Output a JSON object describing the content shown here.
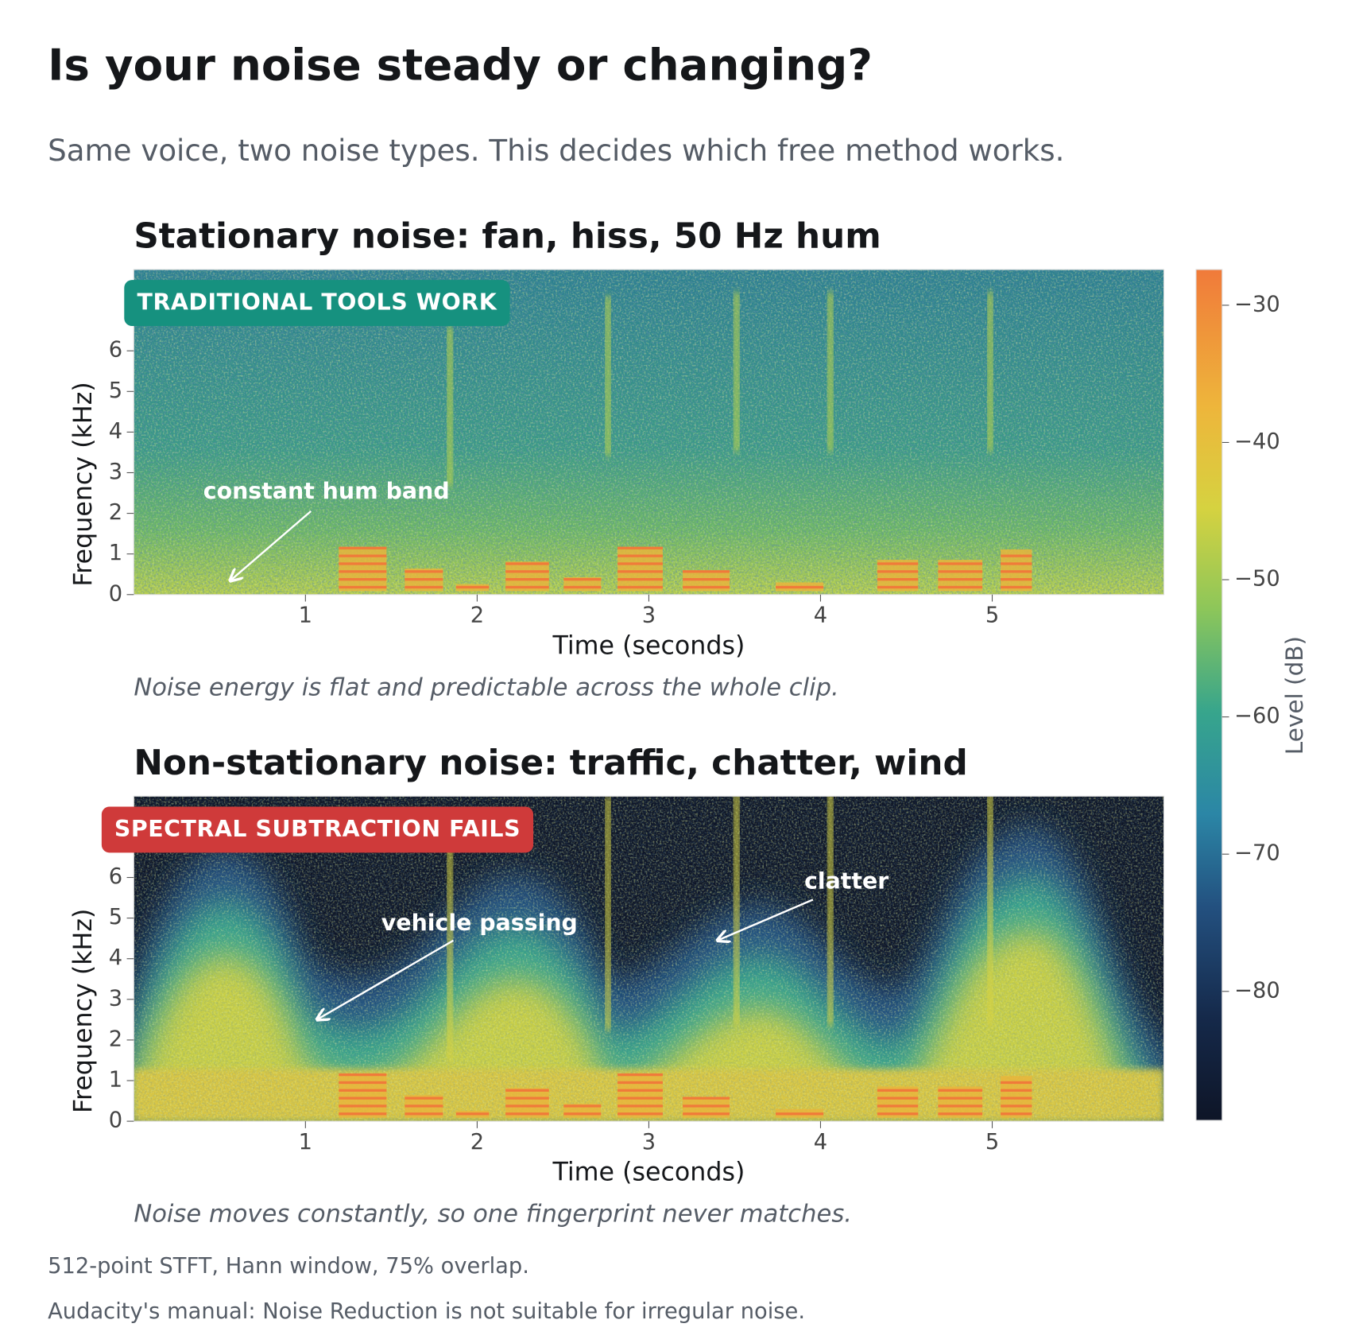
{
  "title": "Is your noise steady or changing?",
  "subtitle": "Same voice, two noise types. This decides which free method works.",
  "footnotes": [
    "512-point STFT, Hann window, 75% overlap.",
    "Audacity's manual: Noise Reduction is not suitable for irregular noise."
  ],
  "colorbar": {
    "label": "Level (dB)",
    "clim": [
      -89.4,
      -27.4
    ],
    "ticks": [
      {
        "value": -30,
        "label": "−30"
      },
      {
        "value": -40,
        "label": "−40"
      },
      {
        "value": -50,
        "label": "−50"
      },
      {
        "value": -60,
        "label": "−60"
      },
      {
        "value": -70,
        "label": "−70"
      },
      {
        "value": -80,
        "label": "−80"
      }
    ]
  },
  "chart_data": [
    {
      "type": "spectrogram",
      "variant": "stationary",
      "title": "Stationary noise: fan, hiss, 50 Hz hum",
      "badge": "TRADITIONAL TOOLS WORK",
      "badge_color": "#16917f",
      "xlabel": "Time (seconds)",
      "ylabel": "Frequency (kHz)",
      "xlim": [
        0,
        6
      ],
      "ylim": [
        0,
        8
      ],
      "xticks": [
        1,
        2,
        3,
        4,
        5
      ],
      "yticks": [
        0,
        1,
        2,
        3,
        4,
        5,
        6
      ],
      "annotations": [
        "constant hum band"
      ],
      "caption": "Noise energy is flat and predictable across the whole clip."
    },
    {
      "type": "spectrogram",
      "variant": "nonstationary",
      "title": "Non-stationary noise: traffic, chatter, wind",
      "badge": "SPECTRAL SUBTRACTION FAILS",
      "badge_color": "#cf3a3a",
      "xlabel": "Time (seconds)",
      "ylabel": "Frequency (kHz)",
      "xlim": [
        0,
        6
      ],
      "ylim": [
        0,
        8
      ],
      "xticks": [
        1,
        2,
        3,
        4,
        5
      ],
      "yticks": [
        0,
        1,
        2,
        3,
        4,
        5,
        6
      ],
      "annotations": [
        "vehicle passing",
        "clatter"
      ],
      "caption": "Noise moves constantly, so one fingerprint never matches."
    }
  ]
}
